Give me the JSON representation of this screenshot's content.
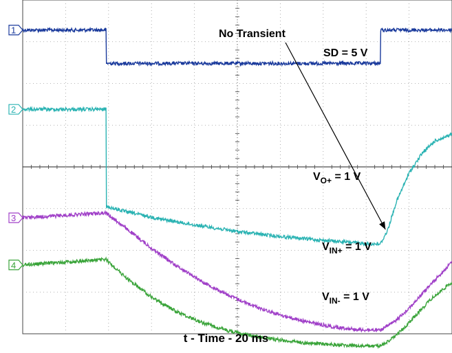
{
  "chart_data": {
    "type": "line",
    "title": "",
    "xlabel": "t - Time - 20 ms",
    "ylabel": "",
    "x_unit": "divisions",
    "y_unit": "divisions",
    "xlim": [
      0,
      10
    ],
    "ylim": [
      0,
      8
    ],
    "grid": true,
    "series": [
      {
        "id": "1",
        "name": "SD = 5 V",
        "color": "#1a3a9c",
        "x": [
          0,
          1.94,
          1.95,
          8.33,
          8.34,
          10
        ],
        "y": [
          7.28,
          7.28,
          6.48,
          6.48,
          7.28,
          7.28
        ]
      },
      {
        "id": "2",
        "name": "VO+ = 1 V",
        "color": "#2bb3b3",
        "x": [
          0,
          1.94,
          1.95,
          2.4,
          3.2,
          4.0,
          5.0,
          6.0,
          7.0,
          8.0,
          8.33,
          8.5,
          8.7,
          9.0,
          9.3,
          9.6,
          10
        ],
        "y": [
          5.38,
          5.38,
          3.05,
          2.93,
          2.75,
          2.61,
          2.45,
          2.33,
          2.24,
          2.16,
          2.15,
          2.48,
          3.15,
          3.85,
          4.32,
          4.62,
          4.78
        ]
      },
      {
        "id": "3",
        "name": "VIN+ = 1 V",
        "color": "#a040c8",
        "x": [
          0,
          1.94,
          2.4,
          3.0,
          3.6,
          4.2,
          4.8,
          5.4,
          6.0,
          6.6,
          7.2,
          7.8,
          8.33,
          8.7,
          9.1,
          9.5,
          10
        ],
        "y": [
          2.78,
          2.9,
          2.53,
          2.05,
          1.62,
          1.24,
          0.92,
          0.66,
          0.45,
          0.29,
          0.17,
          0.1,
          0.08,
          0.32,
          0.72,
          1.18,
          1.72
        ]
      },
      {
        "id": "4",
        "name": "VIN- = 1 V",
        "color": "#3aa43a",
        "x": [
          0,
          1.94,
          2.4,
          3.0,
          3.6,
          4.2,
          4.8,
          5.4,
          6.0,
          6.6,
          7.2,
          7.8,
          8.33,
          8.7,
          9.1,
          9.5,
          10
        ],
        "y": [
          1.65,
          1.78,
          1.35,
          0.88,
          0.52,
          0.26,
          0.07,
          -0.06,
          -0.15,
          -0.22,
          -0.26,
          -0.29,
          -0.3,
          -0.05,
          0.38,
          0.82,
          1.24
        ]
      }
    ],
    "channel_markers": [
      "1",
      "2",
      "3",
      "4"
    ],
    "annotations": [
      {
        "id": "no-transient",
        "text": "No Transient",
        "arrow_to_x": 8.45,
        "arrow_to_y": 2.5
      },
      {
        "id": "sd",
        "main": "SD = 5 V",
        "sub": "",
        "suffix": ""
      },
      {
        "id": "vo",
        "main": "V",
        "sub": "O+",
        "suffix": " = 1 V"
      },
      {
        "id": "vinp",
        "main": "V",
        "sub": "IN+",
        "suffix": " = 1 V"
      },
      {
        "id": "vinn",
        "main": "V",
        "sub": "IN-",
        "suffix": " = 1 V"
      }
    ]
  }
}
